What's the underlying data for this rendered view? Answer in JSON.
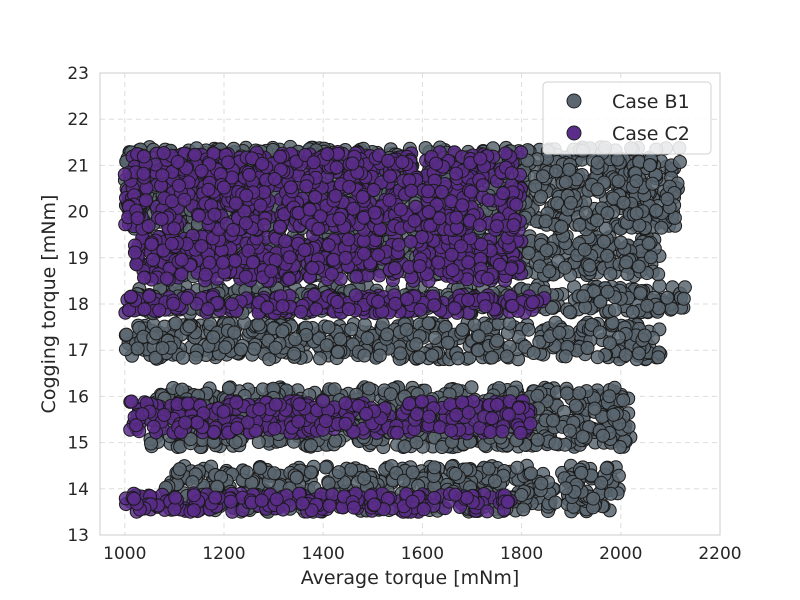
{
  "chart_data": {
    "type": "scatter",
    "title": "",
    "xlabel": "Average torque [mNm]",
    "ylabel": "Cogging torque [mNm]",
    "xlim": [
      950,
      2200
    ],
    "ylim": [
      13,
      23
    ],
    "xticks": [
      "1000",
      "1200",
      "1400",
      "1600",
      "1800",
      "2000",
      "2200"
    ],
    "yticks": [
      "13",
      "14",
      "15",
      "16",
      "17",
      "18",
      "19",
      "20",
      "21",
      "22",
      "23"
    ],
    "grid": true,
    "legend_position": "top-right",
    "series": [
      {
        "name": "Case B1",
        "color": "#5b6670",
        "bands": [
          {
            "x": [
              1080,
              2000
            ],
            "y": [
              13.5,
              14.5
            ]
          },
          {
            "x": [
              1050,
              2020
            ],
            "y": [
              14.9,
              16.2
            ]
          },
          {
            "x": [
              1000,
              2080
            ],
            "y": [
              16.8,
              17.6
            ]
          },
          {
            "x": [
              1020,
              2130
            ],
            "y": [
              17.8,
              18.4
            ]
          },
          {
            "x": [
              1060,
              2080
            ],
            "y": [
              18.6,
              19.5
            ]
          },
          {
            "x": [
              1000,
              2120
            ],
            "y": [
              19.6,
              21.4
            ]
          }
        ]
      },
      {
        "name": "Case C2",
        "color": "#5a2d8a",
        "bands": [
          {
            "x": [
              1000,
              1780
            ],
            "y": [
              13.5,
              13.9
            ]
          },
          {
            "x": [
              1010,
              1820
            ],
            "y": [
              15.2,
              15.9
            ]
          },
          {
            "x": [
              1000,
              1850
            ],
            "y": [
              17.8,
              18.2
            ]
          },
          {
            "x": [
              1020,
              1800
            ],
            "y": [
              18.5,
              19.5
            ]
          },
          {
            "x": [
              1000,
              1800
            ],
            "y": [
              19.6,
              21.3
            ]
          }
        ]
      }
    ]
  }
}
